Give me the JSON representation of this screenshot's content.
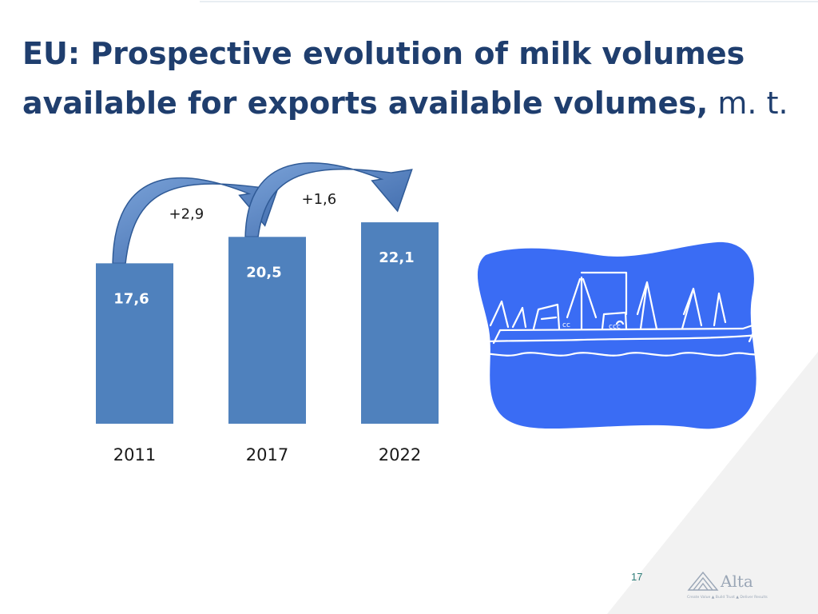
{
  "title": {
    "line1": "EU: Prospective evolution of milk volumes",
    "line2_bold": "available for exports available volumes,",
    "line2_unit": "m. t."
  },
  "chart_data": {
    "type": "bar",
    "categories": [
      "2011",
      "2017",
      "2022"
    ],
    "values": [
      17.6,
      20.5,
      22.1
    ],
    "value_labels": [
      "17,6",
      "20,5",
      "22,1"
    ],
    "changes": [
      {
        "from": "2011",
        "to": "2017",
        "label": "+2,9"
      },
      {
        "from": "2017",
        "to": "2022",
        "label": "+1,6"
      }
    ],
    "title": "",
    "xlabel": "",
    "ylabel": "",
    "ylim": [
      0,
      25
    ],
    "grid": false,
    "legend": "none",
    "bar_color": "#4f81bd"
  },
  "page_number": "17",
  "logo": {
    "name": "Alta",
    "tagline": "Create Value ▲ Build Trust ▲ Deliver Results"
  },
  "colors": {
    "title": "#1f3e6e",
    "bar": "#4f81bd",
    "ship_blob": "#3a6cf4"
  }
}
